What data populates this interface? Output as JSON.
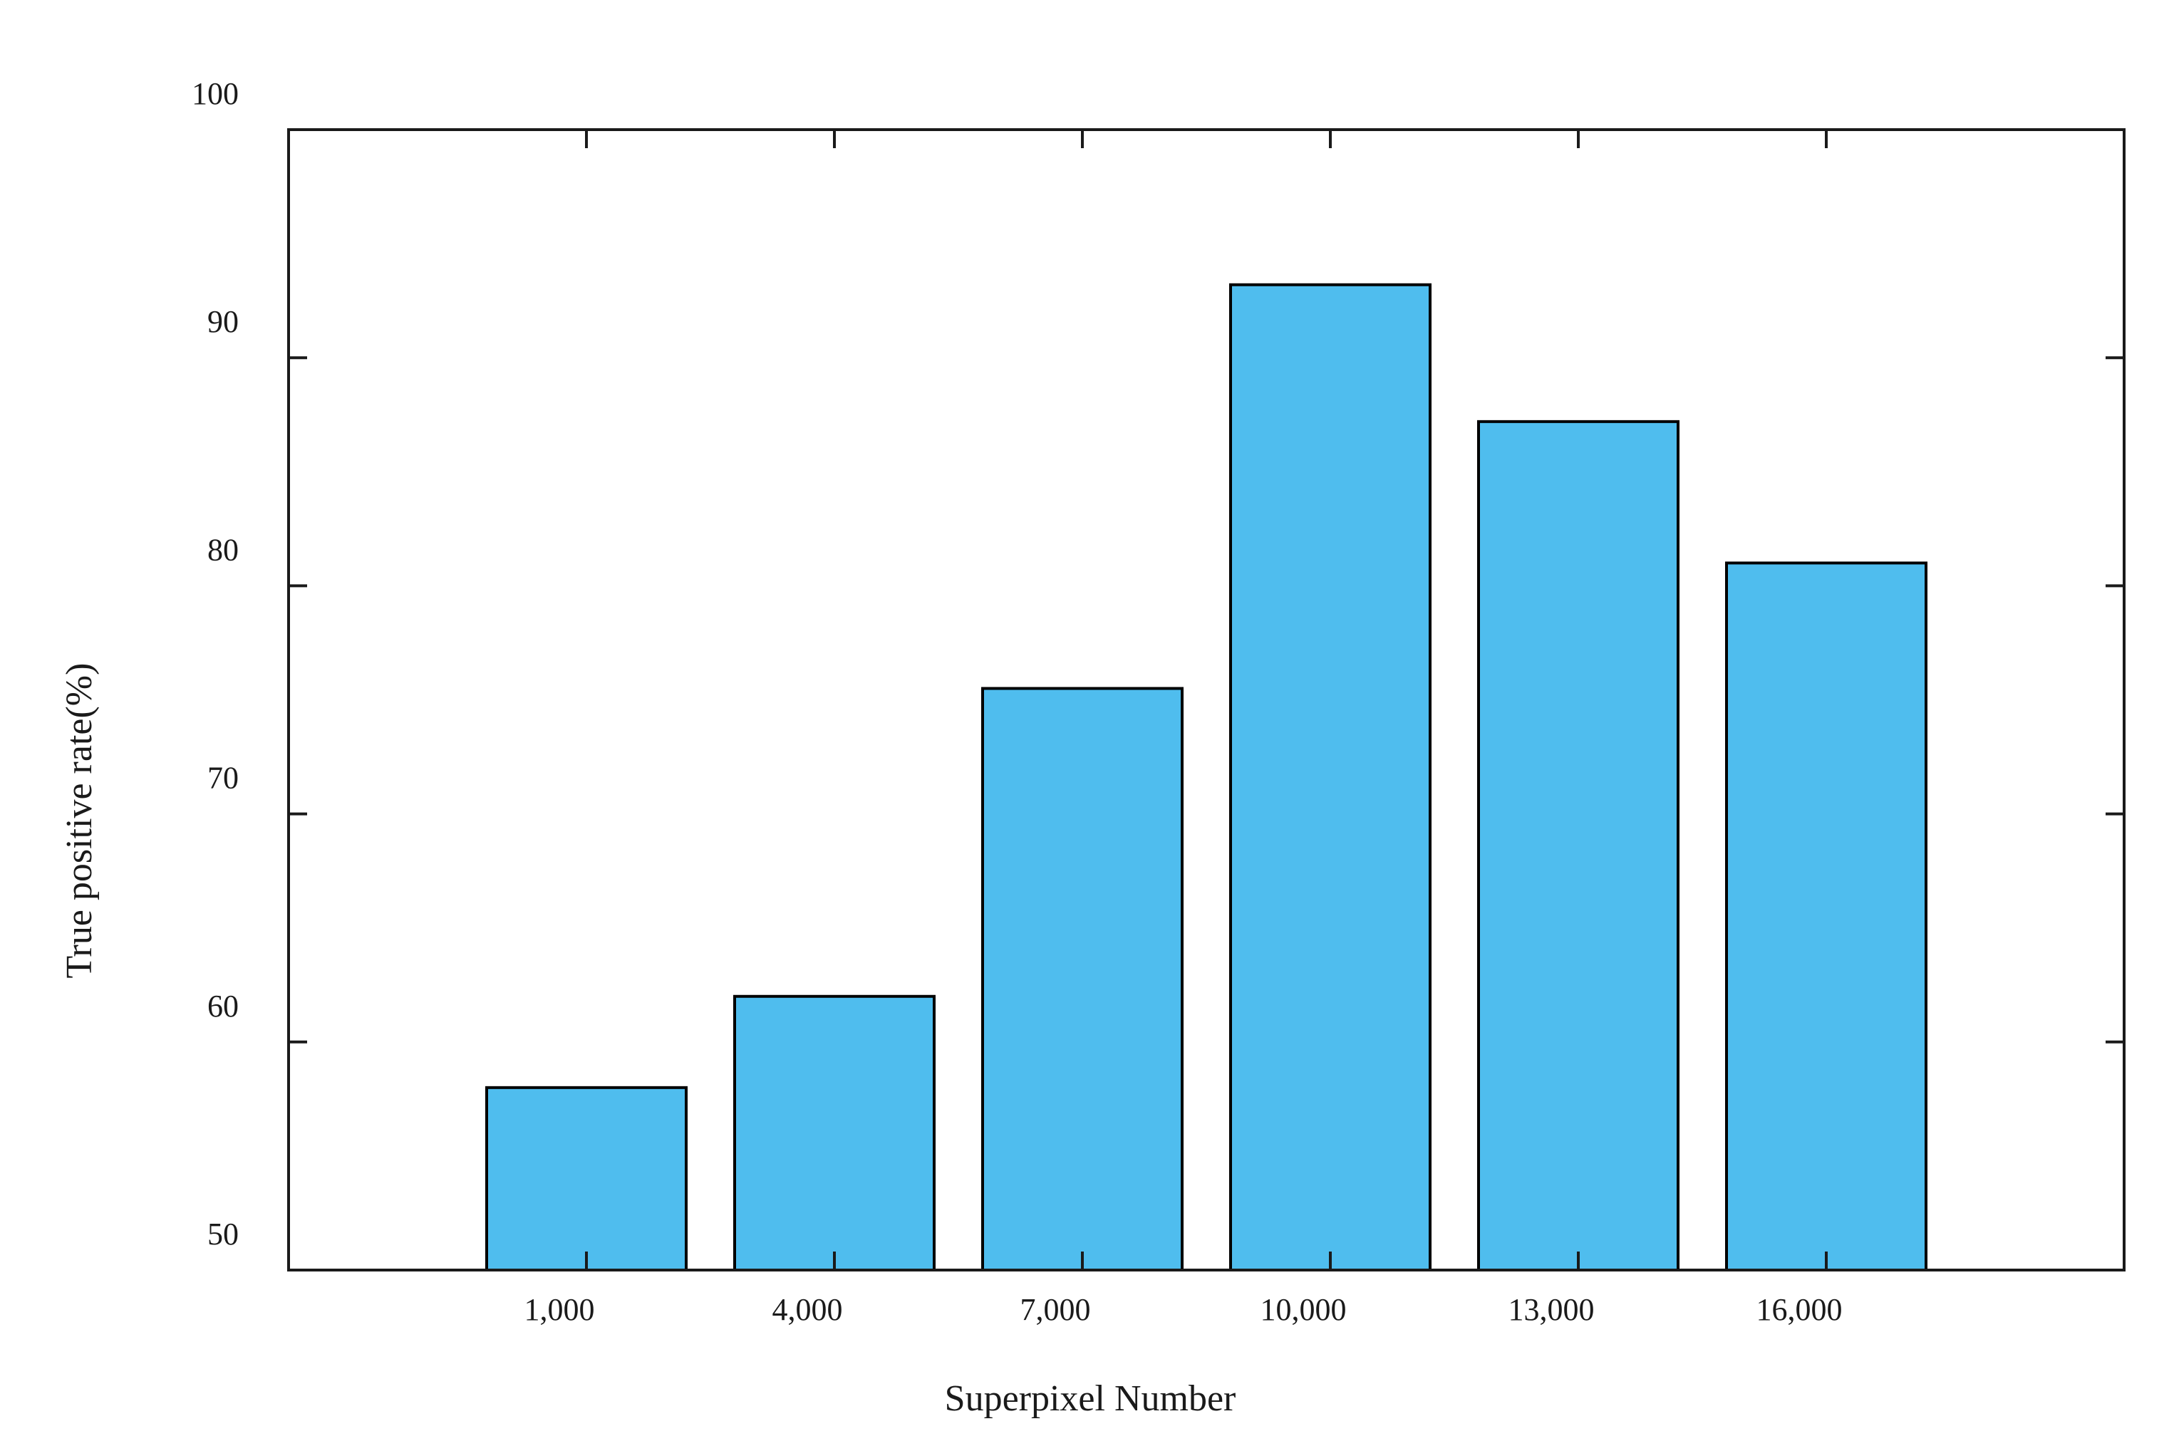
{
  "chart_data": {
    "type": "bar",
    "title": "",
    "xlabel": "Superpixel Number",
    "ylabel": "True positive rate(%)",
    "categories": [
      "1,000",
      "4,000",
      "7,000",
      "10,000",
      "13,000",
      "16,000"
    ],
    "values": [
      58,
      62,
      75.5,
      93.2,
      87.2,
      81
    ],
    "ylim": [
      50,
      100
    ],
    "yticks": [
      "50",
      "60",
      "70",
      "80",
      "90",
      "100"
    ],
    "bar_color": "#4fbdee",
    "edge_color": "#000000",
    "grid": false,
    "legend": "none"
  }
}
